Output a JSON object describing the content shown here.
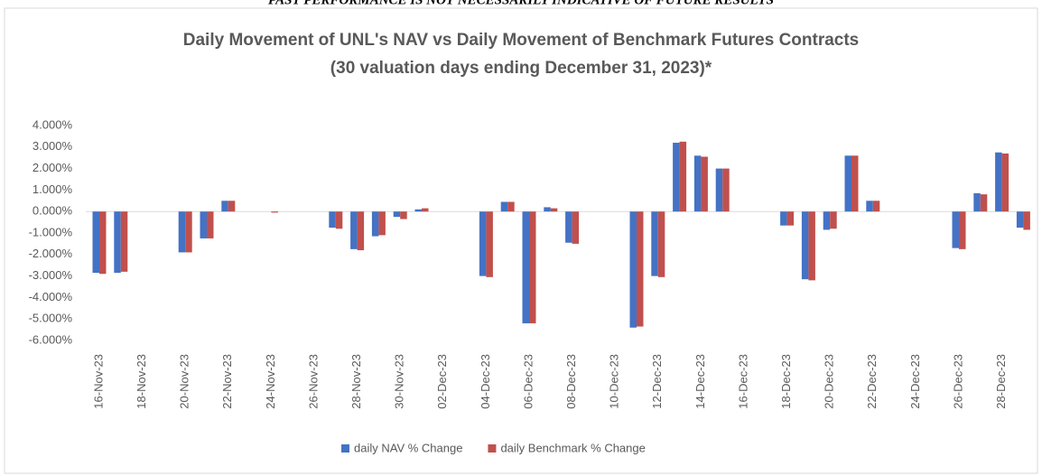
{
  "header": {
    "disclaimer": "PAST PERFORMANCE IS NOT NECESSARILY INDICATIVE OF FUTURE RESULTS"
  },
  "chart_data": {
    "type": "bar",
    "title": "Daily Movement of UNL's NAV vs Daily Movement of Benchmark Futures Contracts",
    "subtitle": "(30 valuation days ending December 31, 2023)*",
    "categories": [
      "16-Nov-23",
      null,
      "18-Nov-23",
      null,
      "20-Nov-23",
      null,
      "22-Nov-23",
      null,
      "24-Nov-23",
      null,
      "26-Nov-23",
      null,
      "28-Nov-23",
      null,
      "30-Nov-23",
      null,
      "02-Dec-23",
      null,
      "04-Dec-23",
      null,
      "06-Dec-23",
      null,
      "08-Dec-23",
      null,
      "10-Dec-23",
      null,
      "12-Dec-23",
      null,
      "14-Dec-23",
      null,
      "16-Dec-23",
      null,
      "18-Dec-23",
      null,
      "20-Dec-23",
      null,
      "22-Dec-23",
      null,
      "24-Dec-23",
      null,
      "26-Dec-23",
      null,
      "28-Dec-23",
      null
    ],
    "series": [
      {
        "name": "daily NAV % Change",
        "color": "#4472c4",
        "values": [
          -2.85,
          -2.85,
          null,
          null,
          -1.9,
          -1.25,
          0.5,
          null,
          0,
          null,
          null,
          -0.75,
          -1.75,
          -1.15,
          -0.25,
          0.1,
          null,
          null,
          -3.0,
          0.45,
          -5.2,
          0.2,
          -1.45,
          null,
          null,
          -5.4,
          -3.0,
          3.2,
          2.6,
          2.0,
          null,
          null,
          -0.65,
          -3.15,
          -0.85,
          2.6,
          0.5,
          null,
          null,
          null,
          -1.7,
          0.85,
          2.75,
          -0.75
        ]
      },
      {
        "name": "daily Benchmark % Change",
        "color": "#c0504d",
        "values": [
          -2.9,
          -2.8,
          null,
          null,
          -1.9,
          -1.25,
          0.5,
          null,
          -0.05,
          null,
          null,
          -0.8,
          -1.8,
          -1.1,
          -0.35,
          0.15,
          null,
          null,
          -3.05,
          0.45,
          -5.2,
          0.15,
          -1.5,
          null,
          null,
          -5.35,
          -3.05,
          3.25,
          2.55,
          2.0,
          null,
          null,
          -0.65,
          -3.2,
          -0.8,
          2.6,
          0.5,
          null,
          null,
          null,
          -1.75,
          0.8,
          2.7,
          -0.85
        ]
      }
    ],
    "ylim": [
      -6,
      4
    ],
    "yticks": [
      {
        "value": 4,
        "label": "4.000%"
      },
      {
        "value": 3,
        "label": "3.000%"
      },
      {
        "value": 2,
        "label": "2.000%"
      },
      {
        "value": 1,
        "label": "1.000%"
      },
      {
        "value": 0,
        "label": "0.000%"
      },
      {
        "value": -1,
        "label": "-1.000%"
      },
      {
        "value": -2,
        "label": "-2.000%"
      },
      {
        "value": -3,
        "label": "-3.000%"
      },
      {
        "value": -4,
        "label": "-4.000%"
      },
      {
        "value": -5,
        "label": "-5.000%"
      },
      {
        "value": -6,
        "label": "-6.000%"
      }
    ],
    "grid": false,
    "legend": "bottom"
  }
}
